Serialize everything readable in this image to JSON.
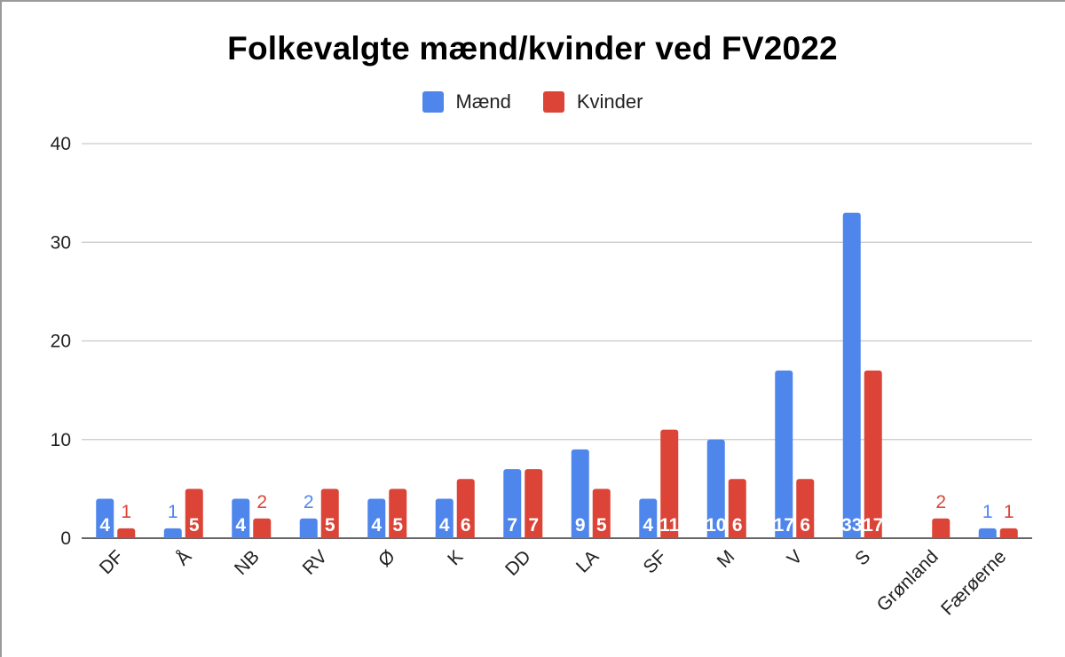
{
  "chart_data": {
    "type": "bar",
    "title": "Folkevalgte mænd/kvinder ved FV2022",
    "xlabel": "",
    "ylabel": "",
    "ylim": [
      0,
      40
    ],
    "yticks": [
      "0",
      "10",
      "20",
      "30",
      "40"
    ],
    "grid": true,
    "legend_position": "top-center",
    "categories": [
      "DF",
      "Å",
      "NB",
      "RV",
      "Ø",
      "K",
      "DD",
      "LA",
      "SF",
      "M",
      "V",
      "S",
      "Grønland",
      "Færøerne"
    ],
    "series": [
      {
        "name": "Mænd",
        "color": "#4f86ec",
        "values": [
          4,
          1,
          4,
          2,
          4,
          4,
          7,
          9,
          4,
          10,
          17,
          33,
          0,
          1
        ]
      },
      {
        "name": "Kvinder",
        "color": "#db4437",
        "values": [
          1,
          5,
          2,
          5,
          5,
          6,
          7,
          5,
          11,
          6,
          6,
          17,
          2,
          1
        ]
      }
    ]
  }
}
